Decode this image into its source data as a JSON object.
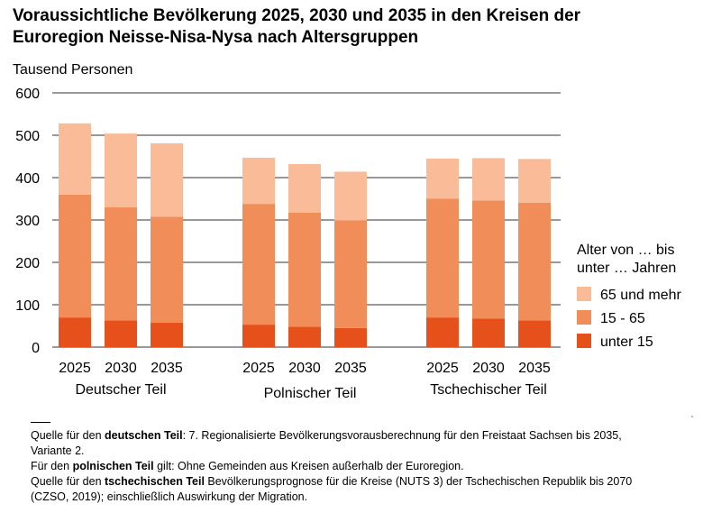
{
  "title_line1": "Voraussichtliche Bevölkerung 2025, 2030 und 2035 in den Kreisen der",
  "title_line2": "Euroregion Neisse-Nisa-Nysa nach Altersgruppen",
  "colors": {
    "s65": "#f9bb98",
    "s15_65": "#f08d58",
    "u15": "#e6501b",
    "grid": "#999999"
  },
  "legend": {
    "title_line1": "Alter von … bis",
    "title_line2": "unter … Jahren",
    "items": [
      "65 und mehr",
      "15 - 65",
      "unter 15"
    ]
  },
  "sources": {
    "l1a": "Quelle für den ",
    "l1b": "deutschen Teil",
    "l1c": ": 7. Regionalisierte Bevölkerungsvorausberechnung für den Freistaat Sachsen bis 2035,",
    "l2": "Variante 2.",
    "l3a": "Für den ",
    "l3b": "polnischen Teil",
    "l3c": " gilt: Ohne Gemeinden aus Kreisen außerhalb der Euroregion.",
    "l4a": "Quelle für den ",
    "l4b": "tschechischen Teil",
    "l4c": " Bevölkerungsprognose für die Kreise (NUTS 3) der Tschechischen Republik bis 2070",
    "l5": "(CZSO, 2019); einschließlich Auswirkung der Migration."
  },
  "chart_data": {
    "type": "bar",
    "stacked": true,
    "ylabel": "Tausend Personen",
    "ylim": [
      0,
      600
    ],
    "yticks": [
      0,
      100,
      200,
      300,
      400,
      500,
      600
    ],
    "grid": true,
    "legend_position": "right",
    "groups": [
      "Deutscher Teil",
      "Polnischer Teil",
      "Tschechischer Teil"
    ],
    "categories": [
      "2025",
      "2030",
      "2035"
    ],
    "series": [
      {
        "name": "unter 15",
        "values": [
          [
            70,
            63,
            58
          ],
          [
            53,
            48,
            45
          ],
          [
            70,
            67,
            63
          ]
        ]
      },
      {
        "name": "15 - 65",
        "values": [
          [
            290,
            267,
            250
          ],
          [
            285,
            269,
            254
          ],
          [
            280,
            279,
            278
          ]
        ]
      },
      {
        "name": "65 und mehr",
        "values": [
          [
            168,
            174,
            173
          ],
          [
            109,
            115,
            115
          ],
          [
            95,
            100,
            103
          ]
        ]
      }
    ]
  }
}
